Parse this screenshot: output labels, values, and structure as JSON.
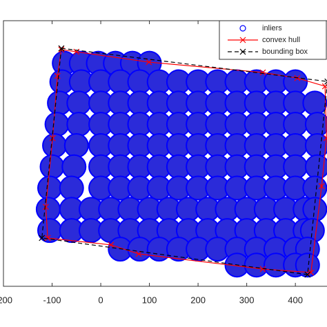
{
  "chart_data": {
    "type": "scatter",
    "xlim": [
      -200,
      465
    ],
    "ylim": [
      0,
      100
    ],
    "xticks": [
      -200,
      -100,
      0,
      100,
      200,
      300,
      400
    ],
    "legend": "top-right",
    "series": [
      {
        "name": "inliers",
        "color": "#0000ff",
        "marker": "o",
        "x": [
          -75,
          -40,
          -5,
          30,
          65,
          100,
          -80,
          -40,
          0,
          40,
          80,
          120,
          160,
          200,
          240,
          280,
          320,
          360,
          400,
          -85,
          -45,
          0,
          40,
          80,
          120,
          160,
          200,
          240,
          280,
          320,
          360,
          400,
          440,
          -90,
          -45,
          0,
          40,
          80,
          120,
          160,
          200,
          240,
          280,
          320,
          360,
          400,
          445,
          -95,
          -50,
          0,
          40,
          80,
          120,
          160,
          200,
          240,
          280,
          320,
          360,
          400,
          445,
          -100,
          -55,
          0,
          40,
          80,
          120,
          160,
          200,
          240,
          280,
          320,
          360,
          400,
          445,
          -105,
          -60,
          0,
          40,
          80,
          120,
          160,
          200,
          240,
          280,
          320,
          360,
          400,
          440,
          -108,
          -60,
          -20,
          20,
          60,
          100,
          140,
          180,
          220,
          260,
          300,
          340,
          380,
          420,
          440,
          -105,
          -60,
          -20,
          20,
          60,
          100,
          140,
          180,
          220,
          260,
          300,
          340,
          380,
          420,
          435,
          40,
          80,
          120,
          160,
          200,
          240,
          280,
          320,
          360,
          400,
          425,
          280,
          320,
          360,
          400,
          425
        ],
        "y": [
          84,
          84,
          84,
          84,
          84,
          84,
          77,
          77,
          77,
          77,
          77,
          77,
          77,
          77,
          77,
          77,
          77,
          77,
          77,
          69,
          69,
          69,
          69,
          69,
          69,
          69,
          69,
          69,
          69,
          69,
          69,
          69,
          69,
          61,
          61,
          61,
          61,
          61,
          61,
          61,
          61,
          61,
          61,
          61,
          61,
          61,
          61,
          53,
          53,
          53,
          53,
          53,
          53,
          53,
          53,
          53,
          53,
          53,
          53,
          53,
          53,
          45,
          45,
          45,
          45,
          45,
          45,
          45,
          45,
          45,
          45,
          45,
          45,
          45,
          45,
          37,
          37,
          37,
          37,
          37,
          37,
          37,
          37,
          37,
          37,
          37,
          37,
          37,
          37,
          29,
          29,
          29,
          29,
          29,
          29,
          29,
          29,
          29,
          29,
          29,
          29,
          29,
          29,
          29,
          21,
          21,
          21,
          21,
          21,
          21,
          21,
          21,
          21,
          21,
          21,
          21,
          21,
          21,
          21,
          14,
          14,
          14,
          14,
          14,
          14,
          14,
          14,
          14,
          14,
          14,
          8,
          8,
          8,
          8,
          8
        ]
      },
      {
        "name": "convex hull",
        "color": "#ff0000",
        "marker": "x",
        "linestyle": "solid",
        "x": [
          -81,
          -50,
          99,
          333,
          404,
          461,
          464,
          454,
          432,
          333,
          78,
          21,
          -109,
          -113,
          -99,
          -89
        ],
        "y": [
          89.1,
          88.3,
          84.4,
          80.5,
          78.4,
          75.3,
          55.8,
          37.7,
          5.2,
          6.5,
          12.2,
          15.6,
          18.2,
          29.9,
          55.8,
          79.2
        ]
      },
      {
        "name": "bounding box",
        "color": "#000000",
        "marker": "x",
        "linestyle": "dashed",
        "x": [
          -81,
          466,
          425,
          -121
        ],
        "y": [
          89.6,
          77.1,
          4.4,
          18.2
        ]
      }
    ]
  }
}
